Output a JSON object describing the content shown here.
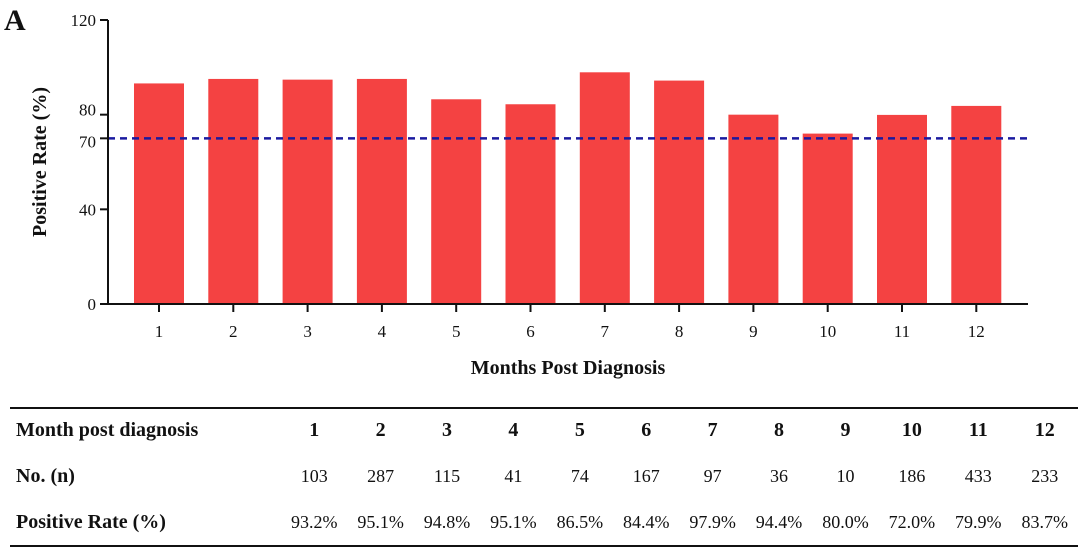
{
  "panel_label": "A",
  "chart_data": {
    "type": "bar",
    "categories": [
      "1",
      "2",
      "3",
      "4",
      "5",
      "6",
      "7",
      "8",
      "9",
      "10",
      "11",
      "12"
    ],
    "values": [
      93.2,
      95.1,
      94.8,
      95.1,
      86.5,
      84.4,
      97.9,
      94.4,
      80.0,
      72.0,
      79.9,
      83.7
    ],
    "xlabel": "Months Post Diagnosis",
    "ylabel": "Positive Rate (%)",
    "ylim": [
      0,
      120
    ],
    "yticks": [
      0,
      40,
      70,
      80,
      120
    ],
    "reference_line": {
      "value": 70,
      "style": "dashed"
    },
    "grid": false,
    "colors": {
      "bar": "#f44242",
      "reference_line": "#1a1aa0",
      "axis": "#111111"
    }
  },
  "table": {
    "header": [
      "Month post diagnosis",
      "1",
      "2",
      "3",
      "4",
      "5",
      "6",
      "7",
      "8",
      "9",
      "10",
      "11",
      "12"
    ],
    "rows": [
      {
        "label": "No. (n)",
        "values": [
          "103",
          "287",
          "115",
          "41",
          "74",
          "167",
          "97",
          "36",
          "10",
          "186",
          "433",
          "233"
        ]
      },
      {
        "label": "Positive Rate (%)",
        "values": [
          "93.2%",
          "95.1%",
          "94.8%",
          "95.1%",
          "86.5%",
          "84.4%",
          "97.9%",
          "94.4%",
          "80.0%",
          "72.0%",
          "79.9%",
          "83.7%"
        ]
      }
    ]
  }
}
